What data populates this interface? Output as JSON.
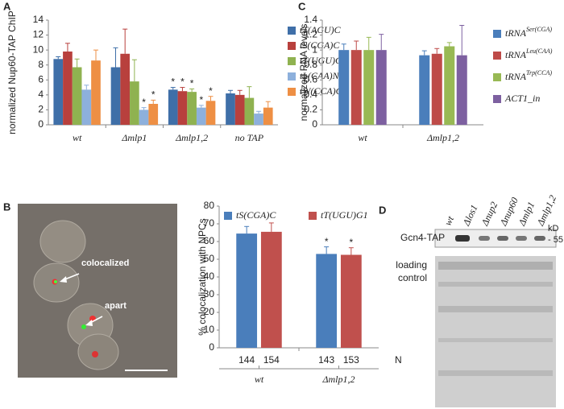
{
  "chart_data": [
    {
      "type": "bar",
      "ylabel": "normalized Nup60-TAP ChIP",
      "categories": [
        "wt",
        "Δmlp1",
        "Δmlp1,2",
        "no TAP"
      ],
      "ylim": [
        0,
        14
      ],
      "yticks": [
        0,
        2,
        4,
        6,
        8,
        10,
        12,
        14
      ],
      "legend": "right",
      "series": [
        {
          "name": "tT(AGU)C",
          "color": "#3f6fa8",
          "values": [
            8.8,
            7.7,
            4.7,
            4.2
          ],
          "errors": [
            0.3,
            2.6,
            0.3,
            0.4
          ],
          "stars": [
            null,
            null,
            "*",
            null
          ]
        },
        {
          "name": "tS(CGA)C",
          "color": "#b8403d",
          "values": [
            9.8,
            9.5,
            4.5,
            4.0
          ],
          "errors": [
            1.1,
            3.3,
            0.5,
            0.6
          ],
          "stars": [
            null,
            null,
            "*",
            null
          ]
        },
        {
          "name": "tT(UGU)G1",
          "color": "#8fb250",
          "values": [
            7.7,
            5.8,
            4.4,
            3.6
          ],
          "errors": [
            1.1,
            2.9,
            0.4,
            1.5
          ],
          "stars": [
            null,
            null,
            "*",
            null
          ]
        },
        {
          "name": "tL(CAA)N",
          "color": "#8db0dc",
          "values": [
            4.7,
            2.0,
            2.3,
            1.5
          ],
          "errors": [
            0.6,
            0.3,
            0.3,
            0.3
          ],
          "stars": [
            null,
            "*",
            "*",
            null
          ]
        },
        {
          "name": "tW(CCA)G2",
          "color": "#ee8f44",
          "values": [
            8.6,
            2.8,
            3.2,
            2.3
          ],
          "errors": [
            1.4,
            0.5,
            0.6,
            0.8
          ],
          "stars": [
            null,
            "*",
            "*",
            null
          ]
        }
      ]
    },
    {
      "type": "bar",
      "ylabel": "normalized RNA levels",
      "categories": [
        "wt",
        "Δmlp1,2"
      ],
      "ylim": [
        0,
        1.4
      ],
      "yticks": [
        0,
        0.2,
        0.4,
        0.6,
        0.8,
        1,
        1.2,
        1.4
      ],
      "legend": "right",
      "series": [
        {
          "name": "tRNA",
          "superscript": "Ser(CGA)",
          "color": "#4a7ebb",
          "values": [
            1,
            0.93
          ],
          "errors": [
            0.08,
            0.06
          ]
        },
        {
          "name": "tRNA",
          "superscript": "Leu(CAA)",
          "color": "#be4b48",
          "values": [
            1,
            0.95
          ],
          "errors": [
            0.12,
            0.07
          ]
        },
        {
          "name": "tRNA",
          "superscript": "Trp(CCA)",
          "color": "#98b954",
          "values": [
            1,
            1.05
          ],
          "errors": [
            0.17,
            0.05
          ]
        },
        {
          "name": "ACT1_in",
          "color": "#7d60a0",
          "values": [
            1,
            0.93
          ],
          "errors": [
            0.21,
            0.4
          ]
        }
      ]
    },
    {
      "type": "bar",
      "ylabel": "% colocalization with NPCs",
      "categories": [
        "wt",
        "Δmlp1,2"
      ],
      "ylim": [
        0,
        80
      ],
      "yticks": [
        0,
        10,
        20,
        30,
        40,
        50,
        60,
        70,
        80
      ],
      "legend": "top",
      "n_label": "N",
      "series": [
        {
          "name": "tS(CGA)C",
          "color": "#4a7ebb",
          "values": [
            64.5,
            53
          ],
          "errors": [
            4,
            4
          ],
          "stars": [
            null,
            "*"
          ],
          "n": [
            144,
            143
          ]
        },
        {
          "name": "tT(UGU)G1",
          "color": "#c0504d",
          "values": [
            65.5,
            52.5
          ],
          "errors": [
            5,
            4
          ],
          "stars": [
            null,
            "*"
          ],
          "n": [
            154,
            153
          ]
        }
      ]
    }
  ],
  "panel_labels": [
    "A",
    "B",
    "C",
    "D"
  ],
  "micrograph": {
    "labels": [
      "colocalized",
      "apart"
    ]
  },
  "blot": {
    "lanes": [
      "wt",
      "Δlos1",
      "Δnup2",
      "Δnup60",
      "Δmlp1",
      "Δmlp1,2"
    ],
    "band_label": "Gcn4-TAP",
    "unit": "kD",
    "marker": "- 55",
    "loading_label": [
      "loading",
      "control"
    ]
  }
}
